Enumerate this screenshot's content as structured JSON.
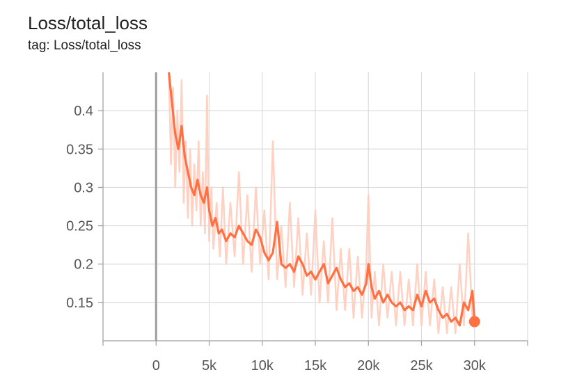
{
  "header": {
    "title": "Loss/total_loss",
    "subtitle": "tag: Loss/total_loss"
  },
  "colors": {
    "series": "#ff7043",
    "series_raw": "#ffccbc",
    "grid": "#dcdcdc",
    "axis": "#9e9e9e",
    "zero_line": "#9e9e9e"
  },
  "chart_data": {
    "type": "line",
    "title": "Loss/total_loss",
    "xlabel": "",
    "ylabel": "",
    "xlim": [
      -5000,
      35000
    ],
    "ylim": [
      0.1,
      0.45
    ],
    "xticks": [
      0,
      5000,
      10000,
      15000,
      20000,
      25000,
      30000
    ],
    "xtick_labels": [
      "0",
      "5k",
      "10k",
      "15k",
      "20k",
      "25k",
      "30k"
    ],
    "yticks": [
      0.15,
      0.2,
      0.25,
      0.3,
      0.35,
      0.4
    ],
    "ytick_labels": [
      "0.15",
      "0.2",
      "0.25",
      "0.3",
      "0.35",
      "0.4"
    ],
    "grid": true,
    "series": [
      {
        "role": "smoothed",
        "x": [
          1200,
          1500,
          1800,
          2100,
          2400,
          2700,
          3000,
          3300,
          3600,
          3900,
          4200,
          4500,
          4800,
          5000,
          5300,
          5600,
          5900,
          6200,
          6600,
          7000,
          7400,
          7800,
          8200,
          8600,
          9000,
          9400,
          9800,
          10200,
          10600,
          11000,
          11400,
          11800,
          12200,
          12600,
          13000,
          13400,
          13800,
          14200,
          14600,
          15000,
          15400,
          15800,
          16200,
          16600,
          17000,
          17400,
          17800,
          18200,
          18600,
          19000,
          19400,
          19800,
          20000,
          20300,
          20600,
          21000,
          21400,
          21800,
          22200,
          22600,
          23000,
          23400,
          23800,
          24200,
          24600,
          25000,
          25400,
          25800,
          26200,
          26600,
          27000,
          27400,
          27800,
          28200,
          28600,
          29000,
          29400,
          29800,
          30000
        ],
        "y": [
          0.45,
          0.41,
          0.37,
          0.35,
          0.38,
          0.34,
          0.32,
          0.3,
          0.29,
          0.31,
          0.29,
          0.28,
          0.3,
          0.27,
          0.25,
          0.26,
          0.24,
          0.245,
          0.23,
          0.24,
          0.235,
          0.25,
          0.24,
          0.23,
          0.225,
          0.245,
          0.235,
          0.215,
          0.205,
          0.215,
          0.255,
          0.2,
          0.195,
          0.2,
          0.19,
          0.21,
          0.2,
          0.185,
          0.19,
          0.18,
          0.19,
          0.2,
          0.175,
          0.185,
          0.195,
          0.18,
          0.17,
          0.175,
          0.165,
          0.17,
          0.16,
          0.175,
          0.2,
          0.17,
          0.155,
          0.165,
          0.15,
          0.16,
          0.15,
          0.145,
          0.15,
          0.14,
          0.145,
          0.14,
          0.16,
          0.145,
          0.165,
          0.15,
          0.155,
          0.14,
          0.13,
          0.135,
          0.125,
          0.13,
          0.12,
          0.15,
          0.14,
          0.165,
          0.125
        ]
      },
      {
        "role": "raw",
        "x": [
          1200,
          1400,
          1600,
          1800,
          2000,
          2200,
          2400,
          2600,
          2800,
          3000,
          3200,
          3400,
          3600,
          3800,
          4000,
          4200,
          4400,
          4600,
          4800,
          5000,
          5200,
          5400,
          5700,
          6000,
          6300,
          6600,
          7000,
          7400,
          7800,
          8200,
          8600,
          9000,
          9400,
          9800,
          10200,
          10600,
          11000,
          11400,
          11800,
          12200,
          12600,
          13000,
          13400,
          13800,
          14200,
          14600,
          15000,
          15400,
          15800,
          16200,
          16600,
          17000,
          17400,
          17800,
          18200,
          18600,
          19000,
          19400,
          19800,
          20000,
          20300,
          20600,
          21000,
          21400,
          21800,
          22200,
          22600,
          23000,
          23400,
          23800,
          24200,
          24600,
          25000,
          25400,
          25800,
          26200,
          26600,
          27000,
          27400,
          27800,
          28200,
          28600,
          29000,
          29400,
          29800,
          30000
        ],
        "y": [
          0.45,
          0.33,
          0.43,
          0.3,
          0.4,
          0.32,
          0.44,
          0.28,
          0.36,
          0.26,
          0.35,
          0.25,
          0.33,
          0.27,
          0.36,
          0.25,
          0.32,
          0.24,
          0.42,
          0.23,
          0.3,
          0.22,
          0.28,
          0.21,
          0.3,
          0.2,
          0.28,
          0.21,
          0.32,
          0.2,
          0.29,
          0.19,
          0.3,
          0.2,
          0.27,
          0.18,
          0.36,
          0.18,
          0.25,
          0.17,
          0.28,
          0.17,
          0.26,
          0.16,
          0.24,
          0.16,
          0.27,
          0.15,
          0.23,
          0.15,
          0.26,
          0.14,
          0.22,
          0.14,
          0.22,
          0.13,
          0.21,
          0.13,
          0.2,
          0.29,
          0.13,
          0.19,
          0.12,
          0.2,
          0.13,
          0.19,
          0.12,
          0.19,
          0.12,
          0.18,
          0.12,
          0.2,
          0.12,
          0.19,
          0.12,
          0.18,
          0.11,
          0.17,
          0.11,
          0.17,
          0.11,
          0.2,
          0.12,
          0.24,
          0.13,
          0.13
        ]
      }
    ]
  }
}
